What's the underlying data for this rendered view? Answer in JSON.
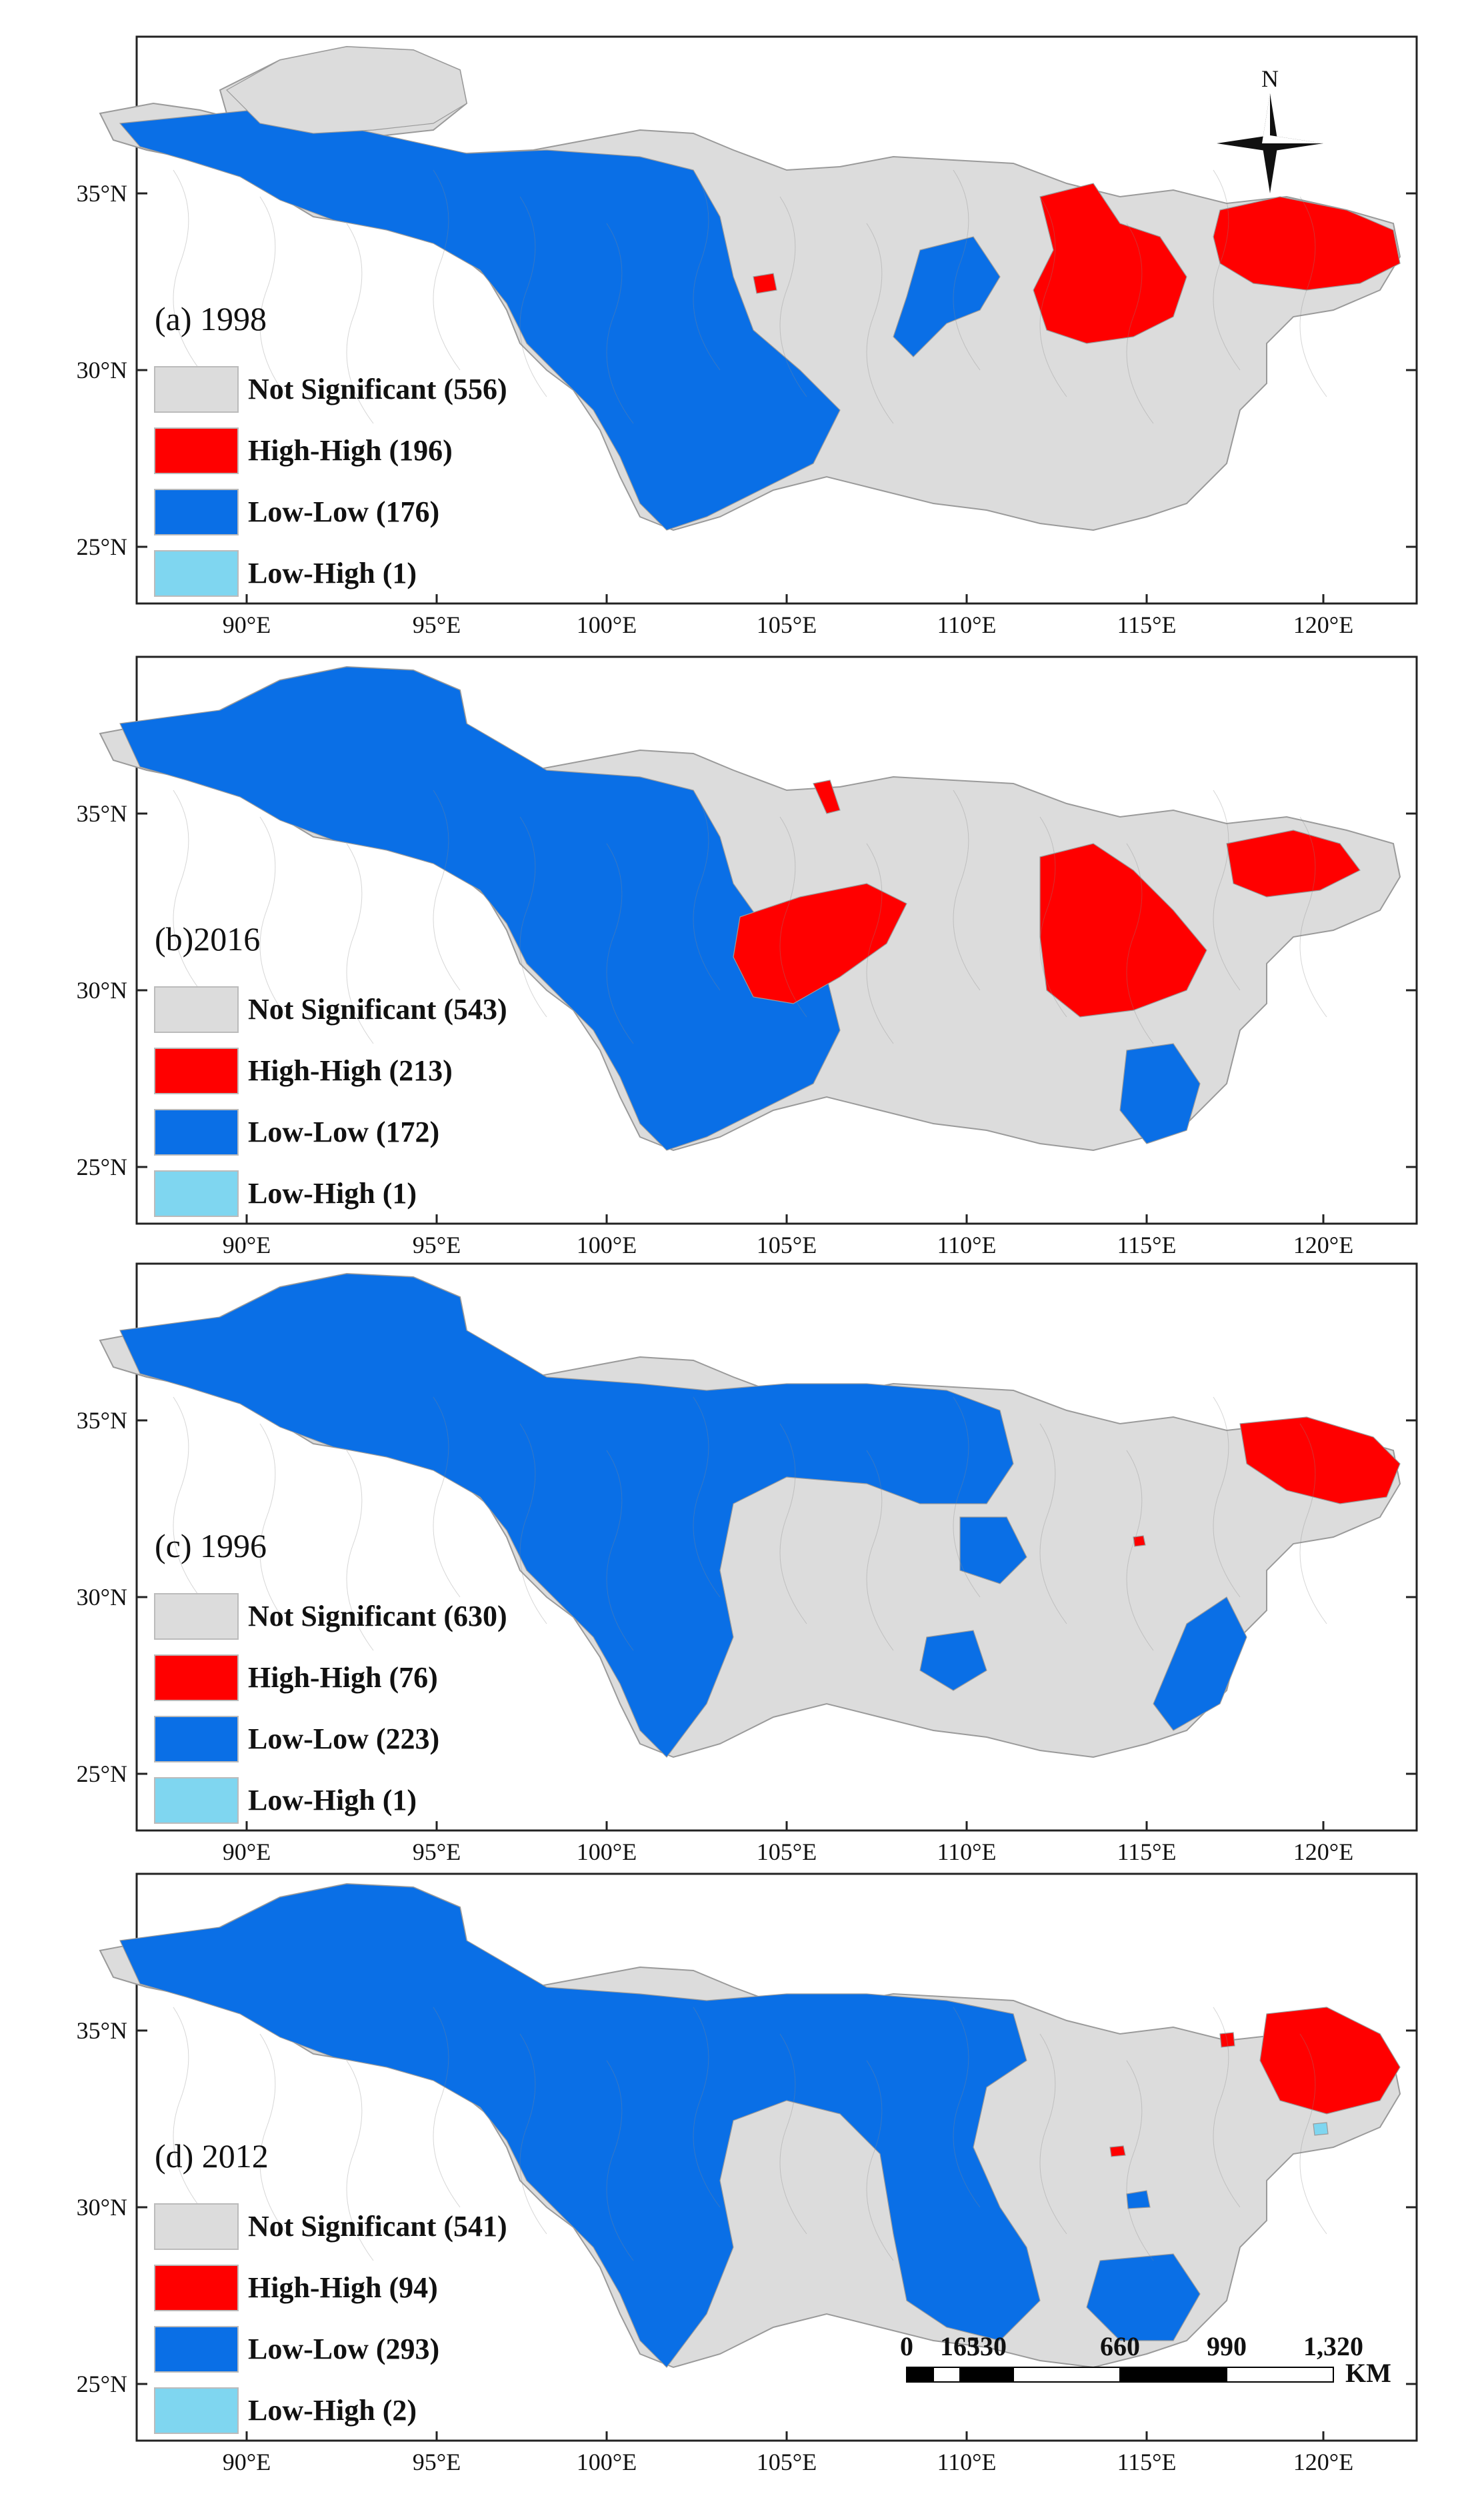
{
  "colors": {
    "not_significant": "#dcdcdc",
    "high_high": "#ff0000",
    "low_low": "#0a6fe6",
    "low_high": "#7fd6f0",
    "boundary": "#9a9a9a"
  },
  "axes": {
    "longitude_labels": [
      "90°E",
      "95°E",
      "100°E",
      "105°E",
      "110°E",
      "115°E",
      "120°E"
    ],
    "latitude_labels": [
      "35°N",
      "30°N",
      "25°N"
    ]
  },
  "panels": [
    {
      "title": "(a) 1998",
      "legend": [
        {
          "label": "Not Significant (556)",
          "color_key": "not_significant"
        },
        {
          "label": "High-High (196)",
          "color_key": "high_high"
        },
        {
          "label": "Low-Low (176)",
          "color_key": "low_low"
        },
        {
          "label": "Low-High (1)",
          "color_key": "low_high"
        }
      ]
    },
    {
      "title": "(b)2016",
      "legend": [
        {
          "label": "Not Significant (543)",
          "color_key": "not_significant"
        },
        {
          "label": "High-High (213)",
          "color_key": "high_high"
        },
        {
          "label": "Low-Low (172)",
          "color_key": "low_low"
        },
        {
          "label": "Low-High (1)",
          "color_key": "low_high"
        }
      ]
    },
    {
      "title": "(c) 1996",
      "legend": [
        {
          "label": "Not Significant (630)",
          "color_key": "not_significant"
        },
        {
          "label": "High-High (76)",
          "color_key": "high_high"
        },
        {
          "label": "Low-Low (223)",
          "color_key": "low_low"
        },
        {
          "label": "Low-High (1)",
          "color_key": "low_high"
        }
      ]
    },
    {
      "title": "(d) 2012",
      "legend": [
        {
          "label": "Not Significant (541)",
          "color_key": "not_significant"
        },
        {
          "label": "High-High (94)",
          "color_key": "high_high"
        },
        {
          "label": "Low-Low (293)",
          "color_key": "low_low"
        },
        {
          "label": "Low-High (2)",
          "color_key": "low_high"
        }
      ]
    }
  ],
  "compass": {
    "label": "N"
  },
  "scale_bar": {
    "labels": [
      "0",
      "165",
      "330",
      "660",
      "990",
      "1,320"
    ],
    "unit": "KM"
  }
}
